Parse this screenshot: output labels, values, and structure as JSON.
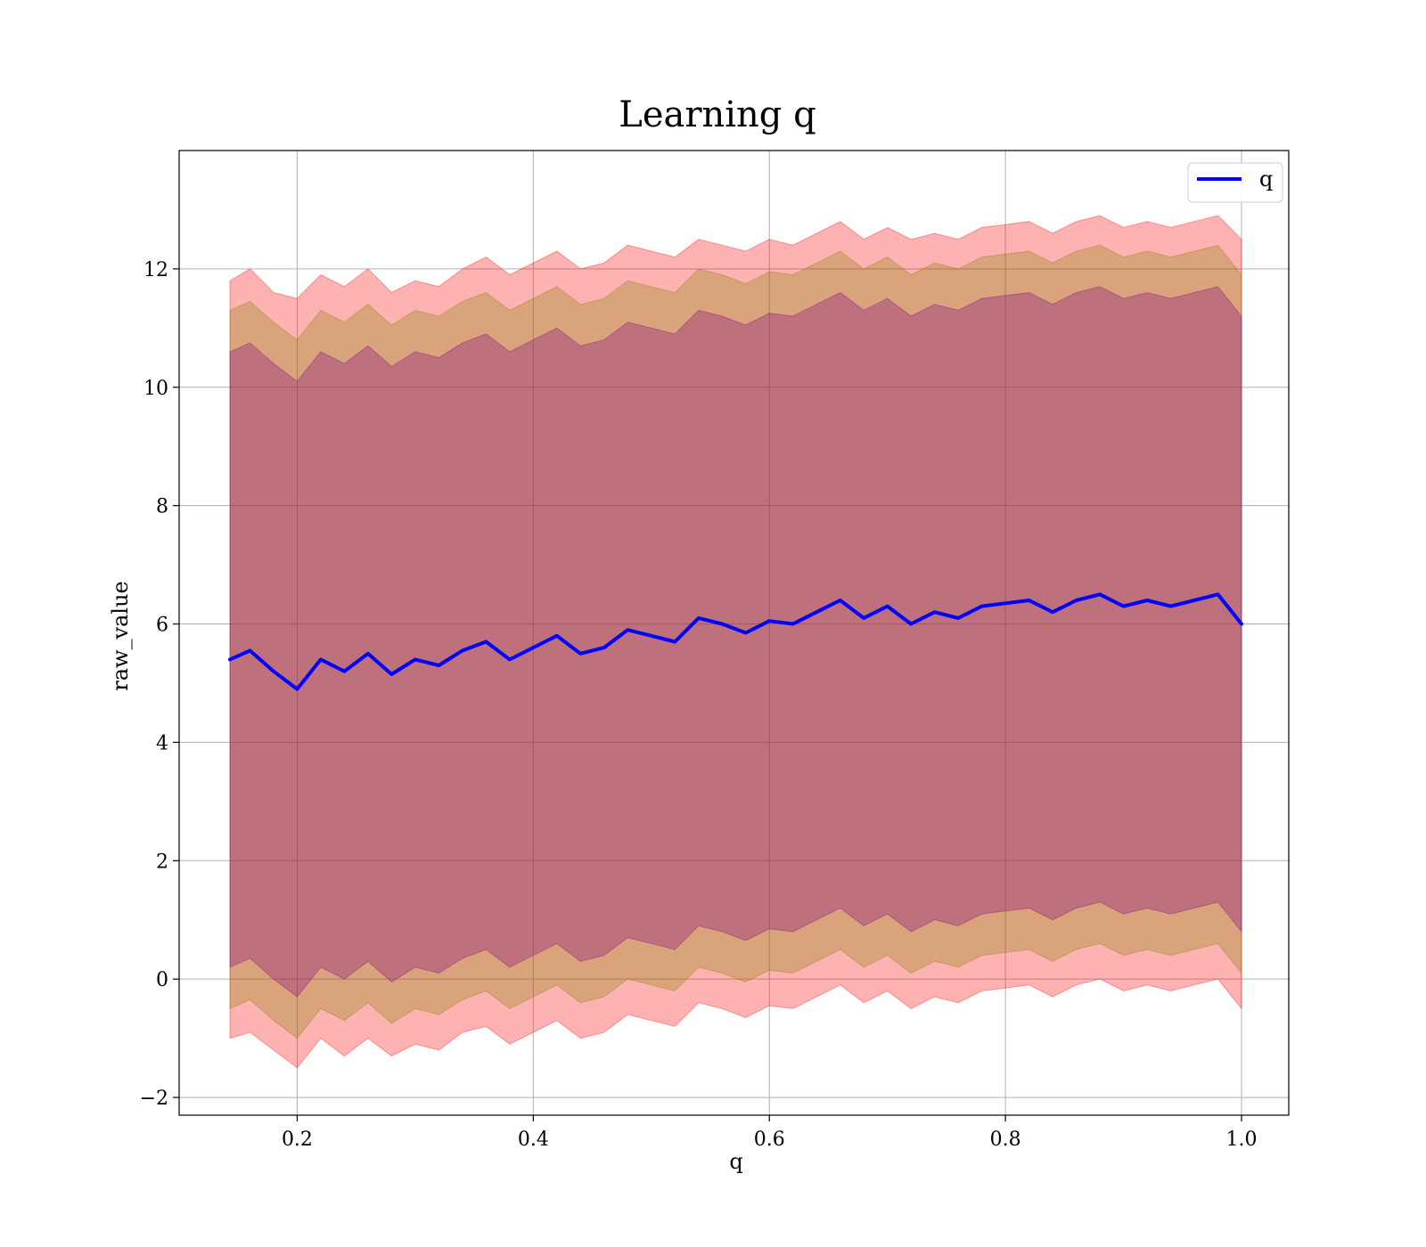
{
  "chart_data": {
    "type": "line",
    "title": "Learning q",
    "xlabel": "q",
    "ylabel": "raw_value",
    "xlim": [
      0.1,
      1.04
    ],
    "ylim": [
      -2.3,
      14.0
    ],
    "xticks": [
      0.2,
      0.4,
      0.6,
      0.8,
      1.0
    ],
    "xtick_labels": [
      "0.2",
      "0.4",
      "0.6",
      "0.8",
      "1.0"
    ],
    "yticks": [
      -2,
      0,
      2,
      4,
      6,
      8,
      10,
      12
    ],
    "ytick_labels": [
      "−2",
      "0",
      "2",
      "4",
      "6",
      "8",
      "10",
      "12"
    ],
    "grid": true,
    "legend": {
      "position": "top-right",
      "entries": [
        "q"
      ]
    },
    "series": [
      {
        "name": "q",
        "color": "#0000ff",
        "x": [
          0.143,
          0.16,
          0.18,
          0.2,
          0.22,
          0.24,
          0.26,
          0.28,
          0.3,
          0.32,
          0.34,
          0.36,
          0.38,
          0.4,
          0.42,
          0.44,
          0.46,
          0.48,
          0.5,
          0.52,
          0.54,
          0.56,
          0.58,
          0.6,
          0.62,
          0.64,
          0.66,
          0.68,
          0.7,
          0.72,
          0.74,
          0.76,
          0.78,
          0.8,
          0.82,
          0.84,
          0.86,
          0.88,
          0.9,
          0.92,
          0.94,
          0.96,
          0.98,
          1.0
        ],
        "y": [
          5.4,
          5.55,
          5.2,
          4.9,
          5.4,
          5.2,
          5.5,
          5.15,
          5.4,
          5.3,
          5.55,
          5.7,
          5.4,
          5.6,
          5.8,
          5.5,
          5.6,
          5.9,
          5.8,
          5.7,
          6.1,
          6.0,
          5.85,
          6.05,
          6.0,
          6.2,
          6.4,
          6.1,
          6.3,
          6.0,
          6.2,
          6.1,
          6.3,
          6.35,
          6.4,
          6.2,
          6.4,
          6.5,
          6.3,
          6.4,
          6.3,
          6.4,
          6.5,
          6.0
        ]
      }
    ],
    "bands": [
      {
        "color": "#ff0000",
        "opacity": 0.3,
        "upper": [
          11.8,
          12.0,
          11.6,
          11.5,
          11.9,
          11.7,
          12.0,
          11.6,
          11.8,
          11.7,
          12.0,
          12.2,
          11.9,
          12.1,
          12.3,
          12.0,
          12.1,
          12.4,
          12.3,
          12.2,
          12.5,
          12.4,
          12.3,
          12.5,
          12.4,
          12.6,
          12.8,
          12.5,
          12.7,
          12.5,
          12.6,
          12.5,
          12.7,
          12.75,
          12.8,
          12.6,
          12.8,
          12.9,
          12.7,
          12.8,
          12.7,
          12.8,
          12.9,
          12.5
        ],
        "lower": [
          -1.0,
          -0.9,
          -1.2,
          -1.5,
          -1.0,
          -1.3,
          -1.0,
          -1.3,
          -1.1,
          -1.2,
          -0.9,
          -0.8,
          -1.1,
          -0.9,
          -0.7,
          -1.0,
          -0.9,
          -0.6,
          -0.7,
          -0.8,
          -0.4,
          -0.5,
          -0.65,
          -0.45,
          -0.5,
          -0.3,
          -0.1,
          -0.4,
          -0.2,
          -0.5,
          -0.3,
          -0.4,
          -0.2,
          -0.15,
          -0.1,
          -0.3,
          -0.1,
          0.0,
          -0.2,
          -0.1,
          -0.2,
          -0.1,
          0.0,
          -0.5
        ]
      },
      {
        "color": "#808000",
        "opacity": 0.3,
        "upper": [
          11.3,
          11.45,
          11.1,
          10.8,
          11.3,
          11.1,
          11.4,
          11.05,
          11.3,
          11.2,
          11.45,
          11.6,
          11.3,
          11.5,
          11.7,
          11.4,
          11.5,
          11.8,
          11.7,
          11.6,
          12.0,
          11.9,
          11.75,
          11.95,
          11.9,
          12.1,
          12.3,
          12.0,
          12.2,
          11.9,
          12.1,
          12.0,
          12.2,
          12.25,
          12.3,
          12.1,
          12.3,
          12.4,
          12.2,
          12.3,
          12.2,
          12.3,
          12.4,
          11.9
        ],
        "lower": [
          -0.5,
          -0.35,
          -0.7,
          -1.0,
          -0.5,
          -0.7,
          -0.4,
          -0.75,
          -0.5,
          -0.6,
          -0.35,
          -0.2,
          -0.5,
          -0.3,
          -0.1,
          -0.4,
          -0.3,
          0.0,
          -0.1,
          -0.2,
          0.2,
          0.1,
          -0.05,
          0.15,
          0.1,
          0.3,
          0.5,
          0.2,
          0.4,
          0.1,
          0.3,
          0.2,
          0.4,
          0.45,
          0.5,
          0.3,
          0.5,
          0.6,
          0.4,
          0.5,
          0.4,
          0.5,
          0.6,
          0.1
        ]
      },
      {
        "color": "#800080",
        "opacity": 0.3,
        "upper": [
          10.6,
          10.75,
          10.4,
          10.1,
          10.6,
          10.4,
          10.7,
          10.35,
          10.6,
          10.5,
          10.75,
          10.9,
          10.6,
          10.8,
          11.0,
          10.7,
          10.8,
          11.1,
          11.0,
          10.9,
          11.3,
          11.2,
          11.05,
          11.25,
          11.2,
          11.4,
          11.6,
          11.3,
          11.5,
          11.2,
          11.4,
          11.3,
          11.5,
          11.55,
          11.6,
          11.4,
          11.6,
          11.7,
          11.5,
          11.6,
          11.5,
          11.6,
          11.7,
          11.2
        ],
        "lower": [
          0.2,
          0.35,
          0.0,
          -0.3,
          0.2,
          0.0,
          0.3,
          -0.05,
          0.2,
          0.1,
          0.35,
          0.5,
          0.2,
          0.4,
          0.6,
          0.3,
          0.4,
          0.7,
          0.6,
          0.5,
          0.9,
          0.8,
          0.65,
          0.85,
          0.8,
          1.0,
          1.2,
          0.9,
          1.1,
          0.8,
          1.0,
          0.9,
          1.1,
          1.15,
          1.2,
          1.0,
          1.2,
          1.3,
          1.1,
          1.2,
          1.1,
          1.2,
          1.3,
          0.8
        ]
      }
    ]
  }
}
